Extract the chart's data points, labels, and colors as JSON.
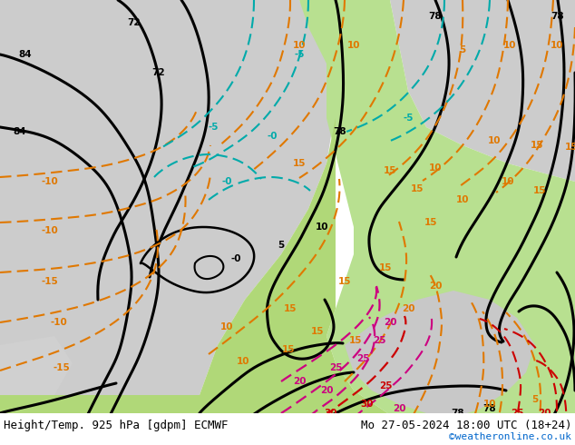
{
  "title_left": "Height/Temp. 925 hPa [gdpm] ECMWF",
  "title_right": "Mo 27-05-2024 18:00 UTC (18+24)",
  "watermark": "©weatheronline.co.uk",
  "fig_width": 6.34,
  "fig_height": 4.9,
  "dpi": 100,
  "title_fontsize": 9,
  "watermark_color": "#0066cc",
  "watermark_fontsize": 8,
  "bg_green_light": "#c8e8a0",
  "bg_green_mid": "#b0d880",
  "bg_gray": "#c8c8c8",
  "bg_gray_light": "#d8d8d8",
  "bg_white": "#ffffff"
}
